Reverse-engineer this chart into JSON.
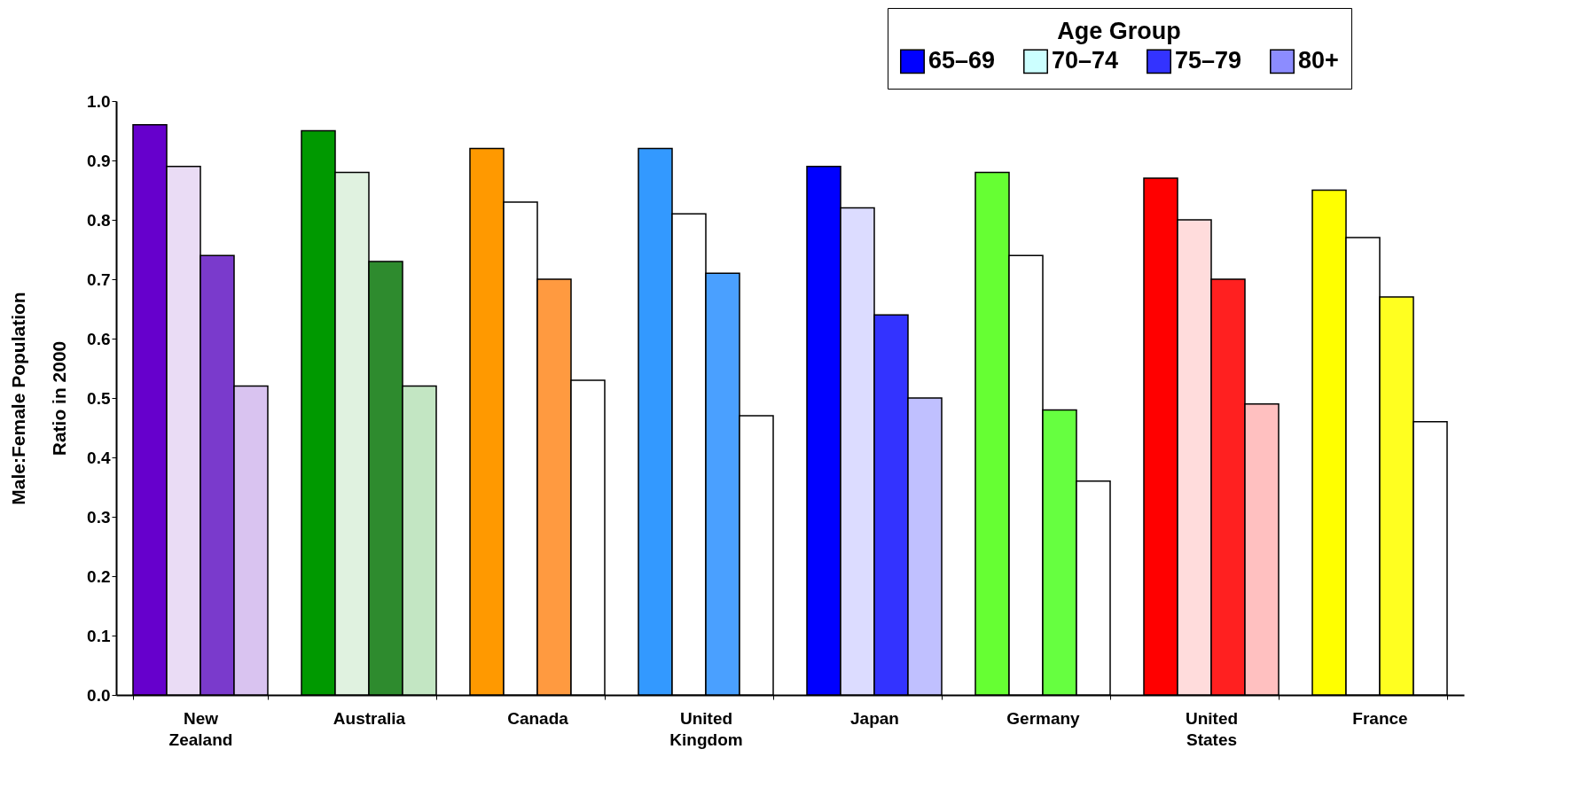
{
  "chart_data": {
    "type": "bar",
    "ylabel": "Male:Female Population Ratio in 2000",
    "legend_title": "Age Group",
    "legend": "top right",
    "grid": false,
    "categories": [
      "New Zealand",
      "Australia",
      "Canada",
      "United Kingdom",
      "Japan",
      "Germany",
      "United States",
      "France"
    ],
    "ylim": [
      0,
      1
    ],
    "yticks": [
      {
        "value": 0,
        "label": "0.0"
      },
      {
        "value": 0.1,
        "label": "0.1"
      },
      {
        "value": 0.2,
        "label": "0.2"
      },
      {
        "value": 0.3,
        "label": "0.3"
      },
      {
        "value": 0.4,
        "label": "0.4"
      },
      {
        "value": 0.5,
        "label": "0.5"
      },
      {
        "value": 0.6,
        "label": "0.6"
      },
      {
        "value": 0.7,
        "label": "0.7"
      },
      {
        "value": 0.8,
        "label": "0.8"
      },
      {
        "value": 0.9,
        "label": "0.9"
      },
      {
        "value": 1,
        "label": "1.0"
      }
    ],
    "series": [
      {
        "name": "65–69",
        "color": "#0000ff",
        "colors": [
          "#6600cc",
          "#009900",
          "#ff9900",
          "#3399ff",
          "#0000ff",
          "#66ff33",
          "#ff0000",
          "#ffff00"
        ],
        "values": [
          0.96,
          0.95,
          0.92,
          0.92,
          0.89,
          0.88,
          0.87,
          0.85
        ]
      },
      {
        "name": "70–74",
        "color": "#ccffff",
        "colors": [
          "#eadcf5",
          "#e0f2e0",
          "#ffffff",
          "#ffffff",
          "#dcdcff",
          "#ffffff",
          "#ffdcdc",
          "#ffffff"
        ],
        "values": [
          0.89,
          0.88,
          0.83,
          0.81,
          0.82,
          0.74,
          0.8,
          0.77
        ]
      },
      {
        "name": "75–79",
        "color": "#3333ff",
        "colors": [
          "#7a3acc",
          "#2e8b2e",
          "#ff9a40",
          "#4aa0ff",
          "#3333ff",
          "#66ff40",
          "#ff2020",
          "#ffff20"
        ],
        "values": [
          0.74,
          0.73,
          0.7,
          0.71,
          0.64,
          0.48,
          0.7,
          0.67
        ]
      },
      {
        "name": "80+",
        "color": "#8c8cff",
        "colors": [
          "#d9c3f0",
          "#c3e6c3",
          "#ffffff",
          "#ffffff",
          "#c0c0ff",
          "#ffffff",
          "#ffc0c0",
          "#ffffff"
        ],
        "values": [
          0.52,
          0.52,
          0.53,
          0.47,
          0.5,
          0.36,
          0.49,
          0.46
        ]
      }
    ]
  }
}
